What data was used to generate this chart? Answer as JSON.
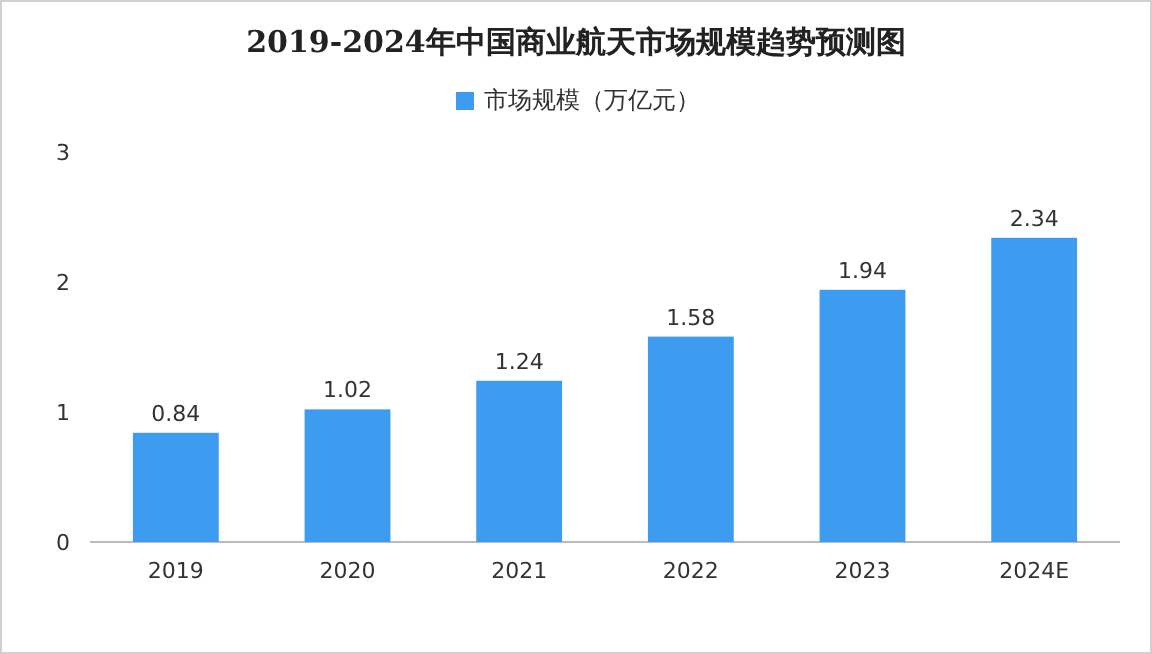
{
  "chart_data": {
    "type": "bar",
    "title": "2019-2024年中国商业航天市场规模趋势预测图",
    "categories": [
      "2019",
      "2020",
      "2021",
      "2022",
      "2023",
      "2024E"
    ],
    "series": [
      {
        "name": "市场规模（万亿元）",
        "color": "#3d9cf0",
        "values": [
          0.84,
          1.02,
          1.24,
          1.58,
          1.94,
          2.34
        ]
      }
    ],
    "ylim": [
      0,
      3
    ],
    "yticks": [
      0,
      1,
      2,
      3
    ],
    "data_labels": true,
    "legend": "top",
    "grid": false
  }
}
